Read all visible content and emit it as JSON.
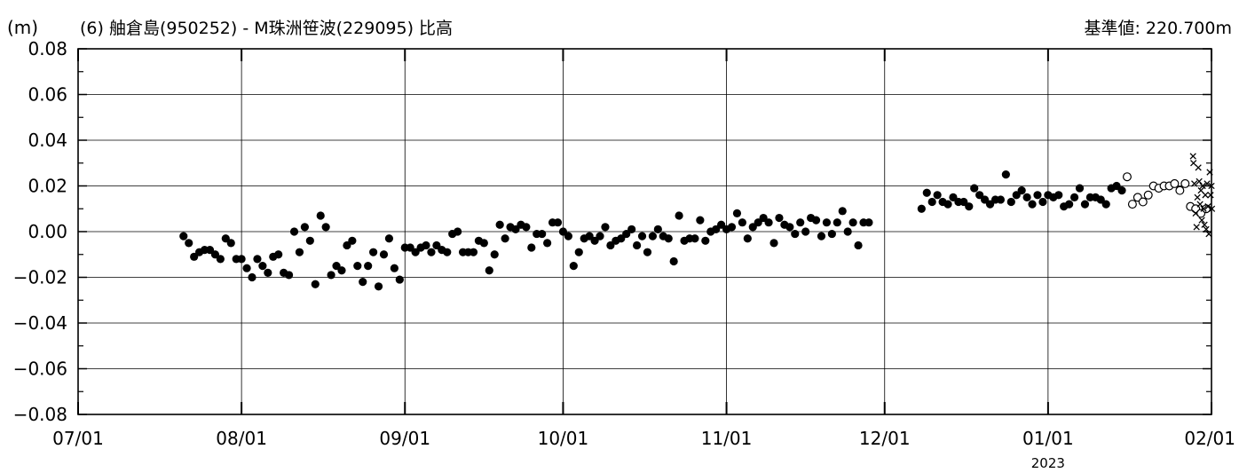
{
  "chart_data": {
    "type": "scatter",
    "title": "(6) 舳倉島(950252) - M珠洲笹波(229095) 比高",
    "reference_label": "基準値: 220.700m",
    "ylabel": "(m)",
    "ylim": [
      -0.08,
      0.08
    ],
    "yticks": [
      "0.08",
      "0.06",
      "0.04",
      "0.02",
      "0.00",
      "−0.02",
      "−0.04",
      "−0.06",
      "−0.08"
    ],
    "xlim": [
      "2022-07-01",
      "2023-02-01"
    ],
    "xticks": [
      {
        "date": "2022-07-01",
        "label": "07/01"
      },
      {
        "date": "2022-08-01",
        "label": "08/01"
      },
      {
        "date": "2022-09-01",
        "label": "09/01"
      },
      {
        "date": "2022-10-01",
        "label": "10/01"
      },
      {
        "date": "2022-11-01",
        "label": "11/01"
      },
      {
        "date": "2022-12-01",
        "label": "12/01"
      },
      {
        "date": "2023-01-01",
        "label": "01/01"
      },
      {
        "date": "2023-02-01",
        "label": "02/01"
      }
    ],
    "year_label": {
      "date": "2023-01-01",
      "label": "2023"
    },
    "grid": true,
    "series": [
      {
        "marker": "filled-circle",
        "points": [
          [
            "2022-07-21",
            -0.002
          ],
          [
            "2022-07-22",
            -0.005
          ],
          [
            "2022-07-23",
            -0.011
          ],
          [
            "2022-07-24",
            -0.009
          ],
          [
            "2022-07-25",
            -0.008
          ],
          [
            "2022-07-26",
            -0.008
          ],
          [
            "2022-07-27",
            -0.01
          ],
          [
            "2022-07-28",
            -0.012
          ],
          [
            "2022-07-29",
            -0.003
          ],
          [
            "2022-07-30",
            -0.005
          ],
          [
            "2022-07-31",
            -0.012
          ],
          [
            "2022-08-01",
            -0.012
          ],
          [
            "2022-08-02",
            -0.016
          ],
          [
            "2022-08-03",
            -0.02
          ],
          [
            "2022-08-04",
            -0.012
          ],
          [
            "2022-08-05",
            -0.015
          ],
          [
            "2022-08-06",
            -0.018
          ],
          [
            "2022-08-07",
            -0.011
          ],
          [
            "2022-08-08",
            -0.01
          ],
          [
            "2022-08-09",
            -0.018
          ],
          [
            "2022-08-10",
            -0.019
          ],
          [
            "2022-08-11",
            0.0
          ],
          [
            "2022-08-12",
            -0.009
          ],
          [
            "2022-08-13",
            0.002
          ],
          [
            "2022-08-14",
            -0.004
          ],
          [
            "2022-08-15",
            -0.023
          ],
          [
            "2022-08-16",
            0.007
          ],
          [
            "2022-08-17",
            0.002
          ],
          [
            "2022-08-18",
            -0.019
          ],
          [
            "2022-08-19",
            -0.015
          ],
          [
            "2022-08-20",
            -0.017
          ],
          [
            "2022-08-21",
            -0.006
          ],
          [
            "2022-08-22",
            -0.004
          ],
          [
            "2022-08-23",
            -0.015
          ],
          [
            "2022-08-24",
            -0.022
          ],
          [
            "2022-08-25",
            -0.015
          ],
          [
            "2022-08-26",
            -0.009
          ],
          [
            "2022-08-27",
            -0.024
          ],
          [
            "2022-08-28",
            -0.01
          ],
          [
            "2022-08-29",
            -0.003
          ],
          [
            "2022-08-30",
            -0.016
          ],
          [
            "2022-08-31",
            -0.021
          ],
          [
            "2022-09-01",
            -0.007
          ],
          [
            "2022-09-02",
            -0.007
          ],
          [
            "2022-09-03",
            -0.009
          ],
          [
            "2022-09-04",
            -0.007
          ],
          [
            "2022-09-05",
            -0.006
          ],
          [
            "2022-09-06",
            -0.009
          ],
          [
            "2022-09-07",
            -0.006
          ],
          [
            "2022-09-08",
            -0.008
          ],
          [
            "2022-09-09",
            -0.009
          ],
          [
            "2022-09-10",
            -0.001
          ],
          [
            "2022-09-11",
            0.0
          ],
          [
            "2022-09-12",
            -0.009
          ],
          [
            "2022-09-13",
            -0.009
          ],
          [
            "2022-09-14",
            -0.009
          ],
          [
            "2022-09-15",
            -0.004
          ],
          [
            "2022-09-16",
            -0.005
          ],
          [
            "2022-09-17",
            -0.017
          ],
          [
            "2022-09-18",
            -0.01
          ],
          [
            "2022-09-19",
            0.003
          ],
          [
            "2022-09-20",
            -0.003
          ],
          [
            "2022-09-21",
            0.002
          ],
          [
            "2022-09-22",
            0.001
          ],
          [
            "2022-09-23",
            0.003
          ],
          [
            "2022-09-24",
            0.002
          ],
          [
            "2022-09-25",
            -0.007
          ],
          [
            "2022-09-26",
            -0.001
          ],
          [
            "2022-09-27",
            -0.001
          ],
          [
            "2022-09-28",
            -0.005
          ],
          [
            "2022-09-29",
            0.004
          ],
          [
            "2022-09-30",
            0.004
          ],
          [
            "2022-10-01",
            0.0
          ],
          [
            "2022-10-02",
            -0.002
          ],
          [
            "2022-10-03",
            -0.015
          ],
          [
            "2022-10-04",
            -0.009
          ],
          [
            "2022-10-05",
            -0.003
          ],
          [
            "2022-10-06",
            -0.002
          ],
          [
            "2022-10-07",
            -0.004
          ],
          [
            "2022-10-08",
            -0.002
          ],
          [
            "2022-10-09",
            0.002
          ],
          [
            "2022-10-10",
            -0.006
          ],
          [
            "2022-10-11",
            -0.004
          ],
          [
            "2022-10-12",
            -0.003
          ],
          [
            "2022-10-13",
            -0.001
          ],
          [
            "2022-10-14",
            0.001
          ],
          [
            "2022-10-15",
            -0.006
          ],
          [
            "2022-10-16",
            -0.002
          ],
          [
            "2022-10-17",
            -0.009
          ],
          [
            "2022-10-18",
            -0.002
          ],
          [
            "2022-10-19",
            0.001
          ],
          [
            "2022-10-20",
            -0.002
          ],
          [
            "2022-10-21",
            -0.003
          ],
          [
            "2022-10-22",
            -0.013
          ],
          [
            "2022-10-23",
            0.007
          ],
          [
            "2022-10-24",
            -0.004
          ],
          [
            "2022-10-25",
            -0.003
          ],
          [
            "2022-10-26",
            -0.003
          ],
          [
            "2022-10-27",
            0.005
          ],
          [
            "2022-10-28",
            -0.004
          ],
          [
            "2022-10-29",
            0.0
          ],
          [
            "2022-10-30",
            0.001
          ],
          [
            "2022-10-31",
            0.003
          ],
          [
            "2022-11-01",
            0.001
          ],
          [
            "2022-11-02",
            0.002
          ],
          [
            "2022-11-03",
            0.008
          ],
          [
            "2022-11-04",
            0.004
          ],
          [
            "2022-11-05",
            -0.003
          ],
          [
            "2022-11-06",
            0.002
          ],
          [
            "2022-11-07",
            0.004
          ],
          [
            "2022-11-08",
            0.006
          ],
          [
            "2022-11-09",
            0.004
          ],
          [
            "2022-11-10",
            -0.005
          ],
          [
            "2022-11-11",
            0.006
          ],
          [
            "2022-11-12",
            0.003
          ],
          [
            "2022-11-13",
            0.002
          ],
          [
            "2022-11-14",
            -0.001
          ],
          [
            "2022-11-15",
            0.004
          ],
          [
            "2022-11-16",
            0.0
          ],
          [
            "2022-11-17",
            0.006
          ],
          [
            "2022-11-18",
            0.005
          ],
          [
            "2022-11-19",
            -0.002
          ],
          [
            "2022-11-20",
            0.004
          ],
          [
            "2022-11-21",
            -0.001
          ],
          [
            "2022-11-22",
            0.004
          ],
          [
            "2022-11-23",
            0.009
          ],
          [
            "2022-11-24",
            0.0
          ],
          [
            "2022-11-25",
            0.004
          ],
          [
            "2022-11-26",
            -0.006
          ],
          [
            "2022-11-27",
            0.004
          ],
          [
            "2022-11-28",
            0.004
          ],
          [
            "2022-12-08",
            0.01
          ],
          [
            "2022-12-09",
            0.017
          ],
          [
            "2022-12-10",
            0.013
          ],
          [
            "2022-12-11",
            0.016
          ],
          [
            "2022-12-12",
            0.013
          ],
          [
            "2022-12-13",
            0.012
          ],
          [
            "2022-12-14",
            0.015
          ],
          [
            "2022-12-15",
            0.013
          ],
          [
            "2022-12-16",
            0.013
          ],
          [
            "2022-12-17",
            0.011
          ],
          [
            "2022-12-18",
            0.019
          ],
          [
            "2022-12-19",
            0.016
          ],
          [
            "2022-12-20",
            0.014
          ],
          [
            "2022-12-21",
            0.012
          ],
          [
            "2022-12-22",
            0.014
          ],
          [
            "2022-12-23",
            0.014
          ],
          [
            "2022-12-24",
            0.025
          ],
          [
            "2022-12-25",
            0.013
          ],
          [
            "2022-12-26",
            0.016
          ],
          [
            "2022-12-27",
            0.018
          ],
          [
            "2022-12-28",
            0.015
          ],
          [
            "2022-12-29",
            0.012
          ],
          [
            "2022-12-30",
            0.016
          ],
          [
            "2022-12-31",
            0.013
          ],
          [
            "2023-01-01",
            0.016
          ],
          [
            "2023-01-02",
            0.015
          ],
          [
            "2023-01-03",
            0.016
          ],
          [
            "2023-01-04",
            0.011
          ],
          [
            "2023-01-05",
            0.012
          ],
          [
            "2023-01-06",
            0.015
          ],
          [
            "2023-01-07",
            0.019
          ],
          [
            "2023-01-08",
            0.012
          ],
          [
            "2023-01-09",
            0.015
          ],
          [
            "2023-01-10",
            0.015
          ],
          [
            "2023-01-11",
            0.014
          ],
          [
            "2023-01-12",
            0.012
          ],
          [
            "2023-01-13",
            0.019
          ],
          [
            "2023-01-14",
            0.02
          ],
          [
            "2023-01-15",
            0.018
          ]
        ]
      },
      {
        "marker": "open-circle",
        "points": [
          [
            "2023-01-16",
            0.024
          ],
          [
            "2023-01-17",
            0.012
          ],
          [
            "2023-01-18",
            0.015
          ],
          [
            "2023-01-19",
            0.013
          ],
          [
            "2023-01-20",
            0.016
          ],
          [
            "2023-01-21",
            0.02
          ],
          [
            "2023-01-22",
            0.019
          ],
          [
            "2023-01-23",
            0.02
          ],
          [
            "2023-01-24",
            0.02
          ],
          [
            "2023-01-25",
            0.021
          ],
          [
            "2023-01-26",
            0.018
          ],
          [
            "2023-01-27",
            0.021
          ],
          [
            "2023-01-28",
            0.011
          ],
          [
            "2023-01-29",
            0.01
          ],
          [
            "2023-01-30",
            0.008
          ],
          [
            "2023-01-31",
            0.01
          ]
        ]
      },
      {
        "marker": "cross",
        "points": [
          [
            "2023-01-28T12:00",
            0.033
          ],
          [
            "2023-01-28T14:00",
            0.03
          ],
          [
            "2023-01-28T18:00",
            0.021
          ],
          [
            "2023-01-29",
            0.008
          ],
          [
            "2023-01-29T04:00",
            0.002
          ],
          [
            "2023-01-29T08:00",
            0.015
          ],
          [
            "2023-01-29T12:00",
            0.028
          ],
          [
            "2023-01-29T16:00",
            0.022
          ],
          [
            "2023-01-29T20:00",
            0.012
          ],
          [
            "2023-01-30",
            0.018
          ],
          [
            "2023-01-30T04:00",
            0.005
          ],
          [
            "2023-01-30T08:00",
            0.02
          ],
          [
            "2023-01-30T12:00",
            0.01
          ],
          [
            "2023-01-30T16:00",
            0.003
          ],
          [
            "2023-01-30T20:00",
            0.016
          ],
          [
            "2023-01-31",
            0.001
          ],
          [
            "2023-01-31T04:00",
            0.021
          ],
          [
            "2023-01-31T08:00",
            0.011
          ],
          [
            "2023-01-31T12:00",
            -0.001
          ],
          [
            "2023-01-31T16:00",
            0.026
          ],
          [
            "2023-01-31T20:00",
            0.016
          ],
          [
            "2023-02-01",
            0.02
          ],
          [
            "2023-02-01T02:00",
            0.01
          ]
        ]
      }
    ]
  }
}
